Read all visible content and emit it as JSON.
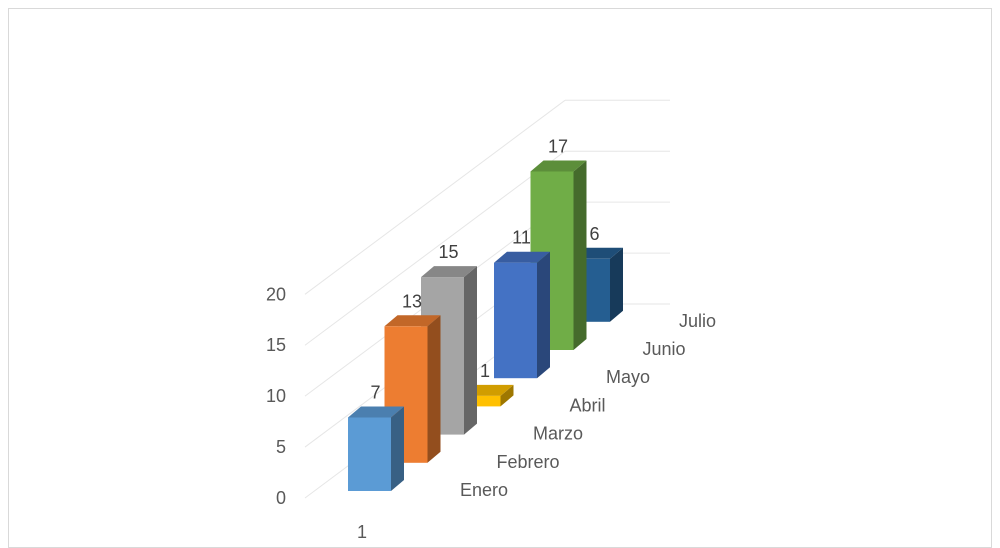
{
  "chart_data": {
    "type": "bar",
    "variant": "3d-column",
    "x_categories": [
      "1"
    ],
    "depth_categories": [
      "Enero",
      "Febrero",
      "Marzo",
      "Abril",
      "Mayo",
      "Junio",
      "Julio"
    ],
    "values": [
      7,
      13,
      15,
      1,
      11,
      17,
      6
    ],
    "data_labels": [
      "7",
      "13",
      "15",
      "1",
      "11",
      "17",
      "6"
    ],
    "y_ticks": [
      "0",
      "5",
      "10",
      "15",
      "20"
    ],
    "ylim": [
      0,
      20
    ],
    "grid": true,
    "legend": "none",
    "colors": [
      "#5b9bd5",
      "#ed7d31",
      "#a5a5a5",
      "#ffc000",
      "#4472c4",
      "#70ad47",
      "#255e91"
    ]
  }
}
